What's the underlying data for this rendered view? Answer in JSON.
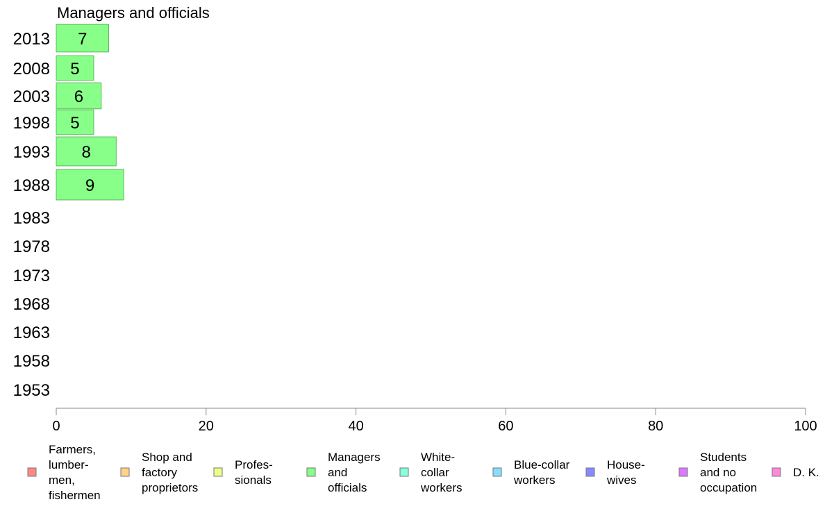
{
  "chart_data": {
    "type": "bar",
    "orientation": "horizontal",
    "title": "Managers and officials",
    "categories": [
      "2013",
      "2008",
      "2003",
      "1998",
      "1993",
      "1988",
      "1983",
      "1978",
      "1973",
      "1968",
      "1963",
      "1958",
      "1953"
    ],
    "series": [
      {
        "name": "Managers and officials",
        "values": [
          7,
          5,
          6,
          5,
          8,
          9,
          null,
          null,
          null,
          null,
          null,
          null,
          null
        ],
        "color": "#88ff88"
      }
    ],
    "data_labels": [
      "7",
      "5",
      "6",
      "5",
      "8",
      "9"
    ],
    "xlim": [
      0,
      100
    ],
    "xticks": [
      "0",
      "20",
      "40",
      "60",
      "80",
      "100"
    ],
    "grid": false,
    "legend_position": "bottom",
    "legend": [
      {
        "lines": [
          "Farmers,",
          "lumber-",
          "men,",
          "fishermen"
        ],
        "color": "#ff8888"
      },
      {
        "lines": [
          "Shop and",
          "factory",
          "proprietors"
        ],
        "color": "#ffd488"
      },
      {
        "lines": [
          "Profes-",
          "sionals"
        ],
        "color": "#eeff88"
      },
      {
        "lines": [
          "Managers",
          "and",
          "officials"
        ],
        "color": "#88ff88"
      },
      {
        "lines": [
          "White-",
          "collar",
          "workers"
        ],
        "color": "#88ffdd"
      },
      {
        "lines": [
          "Blue-collar",
          "workers"
        ],
        "color": "#88ddff"
      },
      {
        "lines": [
          "House-",
          "wives"
        ],
        "color": "#8888ff"
      },
      {
        "lines": [
          "Students",
          "and no",
          "occupation"
        ],
        "color": "#dd77ff"
      },
      {
        "lines": [
          "D. K."
        ],
        "color": "#ff88dd"
      }
    ]
  }
}
